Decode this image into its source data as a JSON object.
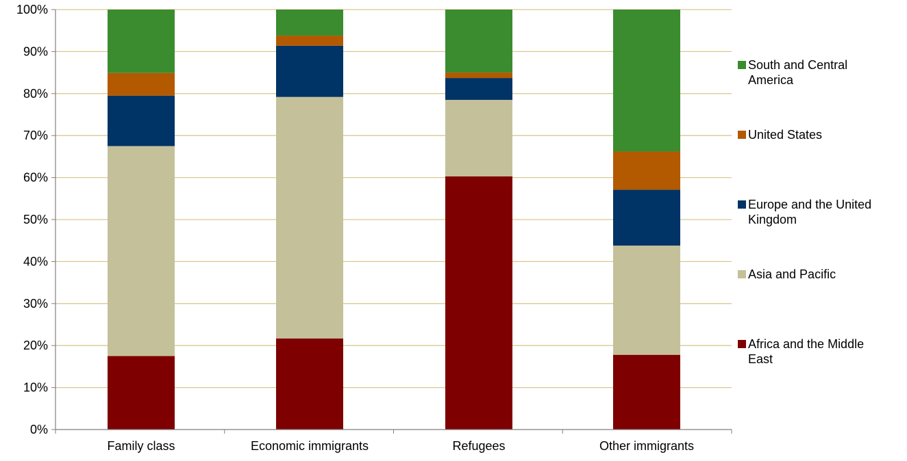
{
  "chart_data": {
    "type": "bar",
    "stacked": true,
    "percent_scale": true,
    "title": "",
    "xlabel": "",
    "ylabel": "",
    "ylim": [
      0,
      100
    ],
    "yticks": [
      "0%",
      "10%",
      "20%",
      "30%",
      "40%",
      "50%",
      "60%",
      "70%",
      "80%",
      "90%",
      "100%"
    ],
    "grid": true,
    "legend_position": "right",
    "categories": [
      "Family class",
      "Economic immigrants",
      "Refugees",
      "Other immigrants"
    ],
    "series": [
      {
        "name": "Africa and the Middle East",
        "color": "#7f0000",
        "values": [
          17.5,
          21.7,
          60.3,
          17.8
        ]
      },
      {
        "name": "Asia and Pacific",
        "color": "#c4c19a",
        "values": [
          50.0,
          57.5,
          18.2,
          26.0
        ]
      },
      {
        "name": "Europe and the United Kingdom",
        "color": "#003366",
        "values": [
          12.0,
          12.2,
          5.2,
          13.3
        ]
      },
      {
        "name": "United States",
        "color": "#b35900",
        "values": [
          5.4,
          2.4,
          1.3,
          9.1
        ]
      },
      {
        "name": "South and Central America",
        "color": "#3a8c2f",
        "values": [
          15.1,
          6.2,
          15.0,
          33.8
        ]
      }
    ],
    "legend_order": [
      "South and Central America",
      "United States",
      "Europe and the United Kingdom",
      "Asia and Pacific",
      "Africa and the Middle East"
    ],
    "legend_lines": {
      "South and Central America": [
        "South and Central",
        "America"
      ],
      "United States": [
        "United States"
      ],
      "Europe and the United Kingdom": [
        "Europe and the United",
        "Kingdom"
      ],
      "Asia and Pacific": [
        "Asia and Pacific"
      ],
      "Africa and the Middle East": [
        "Africa and the Middle",
        "East"
      ]
    },
    "gridline_color": "#d9c88f",
    "axis_color": "#7f7f7f"
  }
}
